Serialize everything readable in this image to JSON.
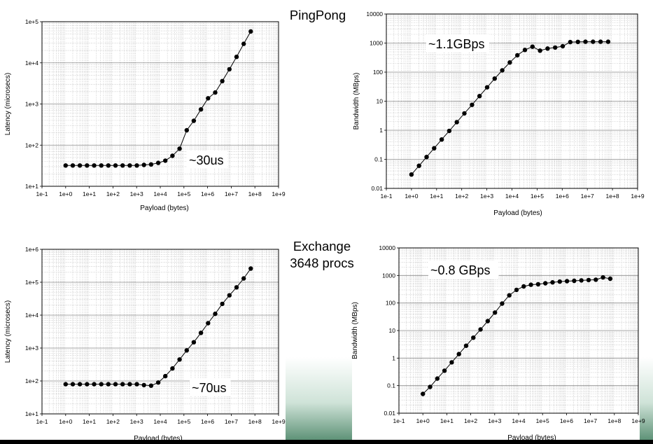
{
  "labels": {
    "pingpong": "PingPong",
    "exchange_line1": "Exchange",
    "exchange_line2": "3648 procs"
  },
  "chart_data": [
    {
      "type": "line",
      "id": "pingpong-latency",
      "xscale": "log",
      "yscale": "log",
      "xlabel": "Payload (bytes)",
      "ylabel": "Latency (microsecs)",
      "xlim": [
        "1e-1",
        "1e+9"
      ],
      "ylim": [
        "1e+1",
        "1e+5"
      ],
      "xticks": [
        "1e-1",
        "1e+0",
        "1e+1",
        "1e+2",
        "1e+3",
        "1e+4",
        "1e+5",
        "1e+6",
        "1e+7",
        "1e+8",
        "1e+9"
      ],
      "yticks": [
        "1e+1",
        "1e+2",
        "1e+3",
        "1e+4",
        "1e+5"
      ],
      "annotation": "~30us",
      "grid": true,
      "x": [
        1,
        2,
        4,
        8,
        16,
        32,
        64,
        128,
        256,
        512,
        1024,
        2048,
        4096,
        8192,
        16384,
        32768,
        65536,
        131072,
        262144,
        524288,
        1048576,
        2097152,
        4194304,
        8388608,
        16777216,
        33554432,
        67108864
      ],
      "y": [
        32,
        32,
        32,
        32,
        32,
        32,
        32,
        32,
        32,
        32,
        32,
        33,
        34,
        37,
        42,
        55,
        82,
        230,
        390,
        740,
        1380,
        1900,
        3600,
        7000,
        14000,
        29000,
        58000
      ]
    },
    {
      "type": "line",
      "id": "pingpong-bandwidth",
      "xscale": "log",
      "yscale": "log",
      "xlabel": "Payload (bytes)",
      "ylabel": "Bandwidth (MBps)",
      "xlim": [
        "1e-1",
        "1e+9"
      ],
      "ylim": [
        "0.01",
        "10000"
      ],
      "xticks": [
        "1e-1",
        "1e+0",
        "1e+1",
        "1e+2",
        "1e+3",
        "1e+4",
        "1e+5",
        "1e+6",
        "1e+7",
        "1e+8",
        "1e+9"
      ],
      "yticks": [
        "0.01",
        "0.1",
        "1",
        "10",
        "100",
        "1000",
        "10000"
      ],
      "annotation": "~1.1GBps",
      "grid": true,
      "x": [
        1,
        2,
        4,
        8,
        16,
        32,
        64,
        128,
        256,
        512,
        1024,
        2048,
        4096,
        8192,
        16384,
        32768,
        65536,
        131072,
        262144,
        524288,
        1048576,
        2097152,
        4194304,
        8388608,
        16777216,
        33554432,
        67108864
      ],
      "y": [
        0.03,
        0.06,
        0.12,
        0.24,
        0.48,
        0.95,
        1.9,
        3.8,
        7.5,
        15,
        30,
        60,
        115,
        215,
        380,
        580,
        750,
        550,
        650,
        700,
        780,
        1080,
        1100,
        1110,
        1110,
        1110,
        1110
      ]
    },
    {
      "type": "line",
      "id": "exchange-latency",
      "xscale": "log",
      "yscale": "log",
      "xlabel": "Payload (bytes)",
      "ylabel": "Latency (microsecs)",
      "xlim": [
        "1e-1",
        "1e+9"
      ],
      "ylim": [
        "1e+1",
        "1e+6"
      ],
      "xticks": [
        "1e-1",
        "1e+0",
        "1e+1",
        "1e+2",
        "1e+3",
        "1e+4",
        "1e+5",
        "1e+6",
        "1e+7",
        "1e+8",
        "1e+9"
      ],
      "yticks": [
        "1e+1",
        "1e+2",
        "1e+3",
        "1e+4",
        "1e+5",
        "1e+6"
      ],
      "annotation": "~70us",
      "grid": true,
      "x": [
        1,
        2,
        4,
        8,
        16,
        32,
        64,
        128,
        256,
        512,
        1024,
        2048,
        4096,
        8192,
        16384,
        32768,
        65536,
        131072,
        262144,
        524288,
        1048576,
        2097152,
        4194304,
        8388608,
        16777216,
        33554432,
        67108864
      ],
      "y": [
        80,
        80,
        80,
        80,
        80,
        80,
        80,
        80,
        80,
        80,
        80,
        75,
        72,
        90,
        140,
        240,
        450,
        850,
        1500,
        2900,
        5700,
        11000,
        22000,
        40000,
        70000,
        130000,
        260000
      ]
    },
    {
      "type": "line",
      "id": "exchange-bandwidth",
      "xscale": "log",
      "yscale": "log",
      "xlabel": "Payload (bytes)",
      "ylabel": "Bandwidth (MBps)",
      "xlim": [
        "1e-1",
        "1e+9"
      ],
      "ylim": [
        "0.01",
        "10000"
      ],
      "xticks": [
        "1e-1",
        "1e+0",
        "1e+1",
        "1e+2",
        "1e+3",
        "1e+4",
        "1e+5",
        "1e+6",
        "1e+7",
        "1e+8",
        "1e+9"
      ],
      "yticks": [
        "0.01",
        "0.1",
        "1",
        "10",
        "100",
        "1000",
        "10000"
      ],
      "annotation": "~0.8 GBps",
      "grid": true,
      "x": [
        1,
        2,
        4,
        8,
        16,
        32,
        64,
        128,
        256,
        512,
        1024,
        2048,
        4096,
        8192,
        16384,
        32768,
        65536,
        131072,
        262144,
        524288,
        1048576,
        2097152,
        4194304,
        8388608,
        16777216,
        33554432,
        67108864
      ],
      "y": [
        0.05,
        0.09,
        0.18,
        0.35,
        0.7,
        1.4,
        2.8,
        5.5,
        11,
        22,
        45,
        95,
        190,
        300,
        400,
        460,
        480,
        520,
        560,
        600,
        620,
        640,
        660,
        680,
        700,
        850,
        760
      ]
    }
  ]
}
